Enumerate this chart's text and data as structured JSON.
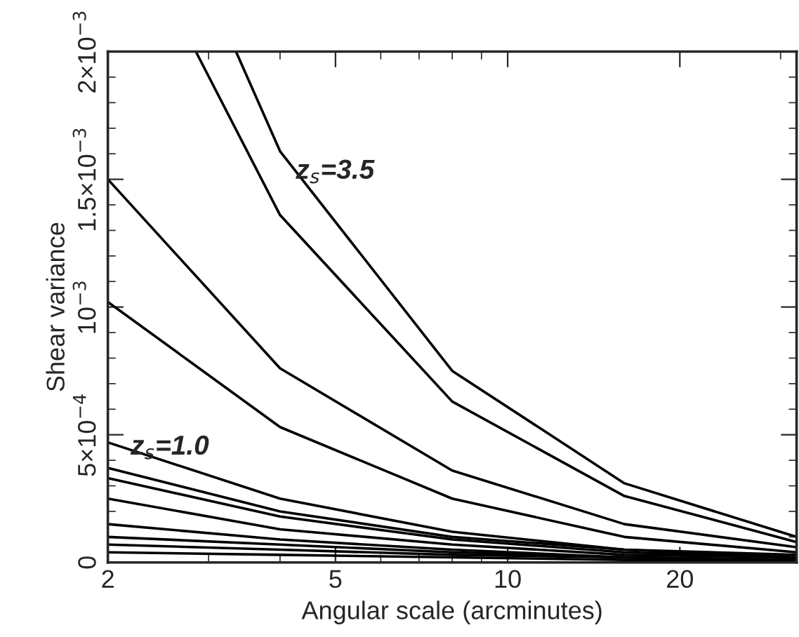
{
  "chart_data": {
    "type": "line",
    "xlabel": "Angular scale (arcminutes)",
    "ylabel": "Shear variance",
    "log": "x",
    "xlim": [
      2,
      32
    ],
    "ylim": [
      0,
      0.002
    ],
    "xticks": [
      2,
      5,
      10,
      20
    ],
    "yticks": [
      {
        "value": 0,
        "label": "0"
      },
      {
        "value": 0.0005,
        "label": "5×10$^{−4}$"
      },
      {
        "value": 0.001,
        "label": "10$^{−3}$"
      },
      {
        "value": 0.0015,
        "label": "1.5×10$^{−3}$"
      },
      {
        "value": 0.002,
        "label": "2×10$^{−3}$"
      }
    ],
    "grid": false,
    "legend": false,
    "marker": "none",
    "line_style": "solid",
    "annotations": [
      "z$_{s}$=3.5",
      "z$_{s}$=1.0"
    ],
    "series": [
      {
        "color": "#000000",
        "x": [
          3.35,
          4,
          8,
          16,
          32
        ],
        "values": [
          0.002,
          0.00161,
          0.00075,
          0.00031,
          0.0001
        ]
      },
      {
        "color": "#000000",
        "x": [
          2.85,
          4,
          8,
          16,
          32
        ],
        "values": [
          0.002,
          0.00136,
          0.00063,
          0.00026,
          8e-05
        ]
      },
      {
        "color": "#000000",
        "x": [
          2,
          4,
          8,
          16,
          32
        ],
        "values": [
          0.0015,
          0.00076,
          0.00036,
          0.00015,
          6e-05
        ]
      },
      {
        "color": "#000000",
        "x": [
          2,
          4,
          8,
          16,
          32
        ],
        "values": [
          0.00102,
          0.00053,
          0.00025,
          0.0001,
          4e-05
        ]
      },
      {
        "color": "#000000",
        "x": [
          2,
          4,
          8,
          16,
          32
        ],
        "values": [
          0.00047,
          0.00025,
          0.00012,
          5e-05,
          3e-05
        ]
      },
      {
        "color": "#000000",
        "x": [
          2,
          4,
          8,
          16,
          32
        ],
        "values": [
          0.00037,
          0.0002,
          0.0001,
          5e-05,
          2e-05
        ]
      },
      {
        "color": "#000000",
        "x": [
          2,
          4,
          8,
          16,
          32
        ],
        "values": [
          0.00033,
          0.00018,
          9e-05,
          4e-05,
          2e-05
        ]
      },
      {
        "color": "#000000",
        "x": [
          2,
          4,
          8,
          16,
          32
        ],
        "values": [
          0.00025,
          0.00013,
          7e-05,
          3e-05,
          2e-05
        ]
      },
      {
        "color": "#000000",
        "x": [
          2,
          4,
          8,
          16,
          32
        ],
        "values": [
          0.00015,
          9e-05,
          5e-05,
          2e-05,
          1e-05
        ]
      },
      {
        "color": "#000000",
        "x": [
          2,
          4,
          8,
          16,
          32
        ],
        "values": [
          0.0001,
          7e-05,
          4e-05,
          2e-05,
          1e-05
        ]
      },
      {
        "color": "#000000",
        "x": [
          2,
          4,
          8,
          16,
          32
        ],
        "values": [
          7e-05,
          5e-05,
          3e-05,
          2e-05,
          1e-05
        ]
      },
      {
        "color": "#000000",
        "x": [
          2,
          4,
          8,
          16,
          32
        ],
        "values": [
          4e-05,
          3e-05,
          2e-05,
          1e-05,
          1e-05
        ]
      }
    ]
  }
}
